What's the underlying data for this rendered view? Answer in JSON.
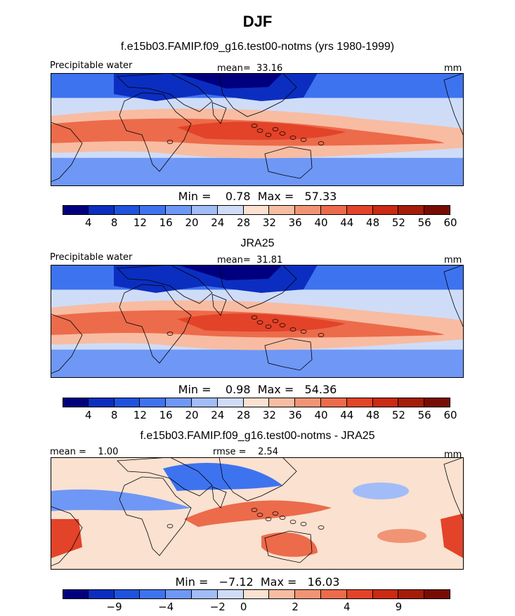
{
  "figure": {
    "title": "DJF",
    "subtitle": "f.e15b03.FAMIP.f09_g16.test00-notms (yrs 1980-1999)"
  },
  "colors": {
    "levels_palette": [
      "#00007f",
      "#0b2ec0",
      "#1f53de",
      "#3e73f0",
      "#6f97f5",
      "#a2bcf7",
      "#cfdcf7",
      "#fae1d0",
      "#f8bca2",
      "#f19475",
      "#ec6b4b",
      "#e34329",
      "#cb2a13",
      "#a51c0a",
      "#780c05"
    ],
    "coast_color": "#000000"
  },
  "chart_data": [
    {
      "type": "heatmap",
      "panel": "model",
      "title": "f.e15b03.FAMIP.f09_g16.test00-notms (yrs 1980-1999)",
      "left_label": "Precipitable water",
      "center_label": "mean=  33.16",
      "right_label": "mm",
      "stats_label": "Min =    0.78  Max =   57.33",
      "mean": 33.16,
      "min": 0.78,
      "max": 57.33,
      "units": "mm",
      "contour_levels": [
        4,
        8,
        12,
        16,
        20,
        24,
        28,
        32,
        36,
        40,
        44,
        48,
        52,
        56,
        60
      ],
      "colorbar_tick_labels": [
        "4",
        "8",
        "12",
        "16",
        "20",
        "24",
        "28",
        "32",
        "36",
        "40",
        "44",
        "48",
        "52",
        "56",
        "60"
      ]
    },
    {
      "type": "heatmap",
      "panel": "observation",
      "title": "JRA25",
      "left_label": "Precipitable water",
      "center_label": "mean=  31.81",
      "right_label": "mm",
      "stats_label": "Min =    0.98  Max =   54.36",
      "mean": 31.81,
      "min": 0.98,
      "max": 54.36,
      "units": "mm",
      "contour_levels": [
        4,
        8,
        12,
        16,
        20,
        24,
        28,
        32,
        36,
        40,
        44,
        48,
        52,
        56,
        60
      ],
      "colorbar_tick_labels": [
        "4",
        "8",
        "12",
        "16",
        "20",
        "24",
        "28",
        "32",
        "36",
        "40",
        "44",
        "48",
        "52",
        "56",
        "60"
      ]
    },
    {
      "type": "heatmap",
      "panel": "difference",
      "title": "f.e15b03.FAMIP.f09_g16.test00-notms - JRA25",
      "left_label": "mean =    1.00",
      "center_label": "rmse =    2.54",
      "right_label": "mm",
      "stats_label": "Min =   −7.12  Max =   16.03",
      "mean": 1.0,
      "rmse": 2.54,
      "min": -7.12,
      "max": 16.03,
      "units": "mm",
      "colorbar_tick_labels": [
        "−9",
        "−4",
        "−2",
        "0",
        "2",
        "4",
        "9"
      ]
    }
  ]
}
